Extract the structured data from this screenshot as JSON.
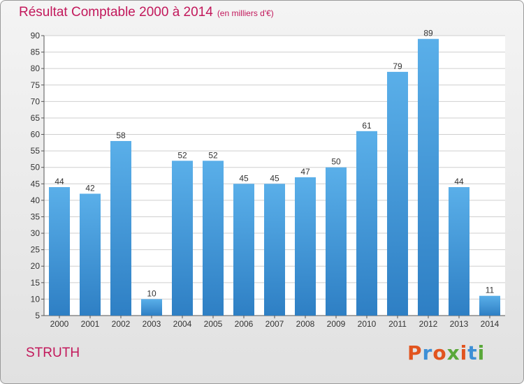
{
  "title": "Résultat Comptable 2000 à 2014",
  "subtitle": "(en milliers d'€)",
  "commune": "STRUTH",
  "logo": {
    "text": "Proxiti",
    "colors": [
      "#e2541e",
      "#3d8fd6",
      "#e2541e",
      "#5aa83a",
      "#e2541e",
      "#3d8fd6",
      "#5aa83a"
    ]
  },
  "colors": {
    "bar_top": "#5aafe9",
    "bar_bottom": "#2e7fc4",
    "title": "#c2185b",
    "grid": "#cfcfcf"
  },
  "chart_data": {
    "type": "bar",
    "title": "Résultat Comptable 2000 à 2014",
    "subtitle": "(en milliers d'€)",
    "categories": [
      "2000",
      "2001",
      "2002",
      "2003",
      "2004",
      "2005",
      "2006",
      "2007",
      "2008",
      "2009",
      "2010",
      "2011",
      "2012",
      "2013",
      "2014"
    ],
    "values": [
      44,
      42,
      58,
      10,
      52,
      52,
      45,
      45,
      47,
      50,
      61,
      79,
      89,
      44,
      11
    ],
    "ylim": [
      5,
      90
    ],
    "yticks": [
      5,
      10,
      15,
      20,
      25,
      30,
      35,
      40,
      45,
      50,
      55,
      60,
      65,
      70,
      75,
      80,
      85,
      90
    ],
    "grid": true,
    "data_labels": true
  }
}
